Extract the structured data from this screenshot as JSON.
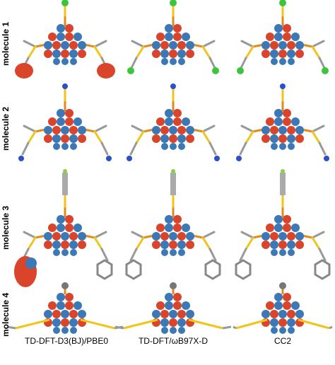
{
  "row_labels": [
    "molecule 1",
    "molecule 2",
    "molecule 3",
    "molecule 4"
  ],
  "column_labels": [
    "TD-DFT-D3(BJ)/PBE0",
    "TD-DFT/ωB97X-D",
    "CC2"
  ]
}
